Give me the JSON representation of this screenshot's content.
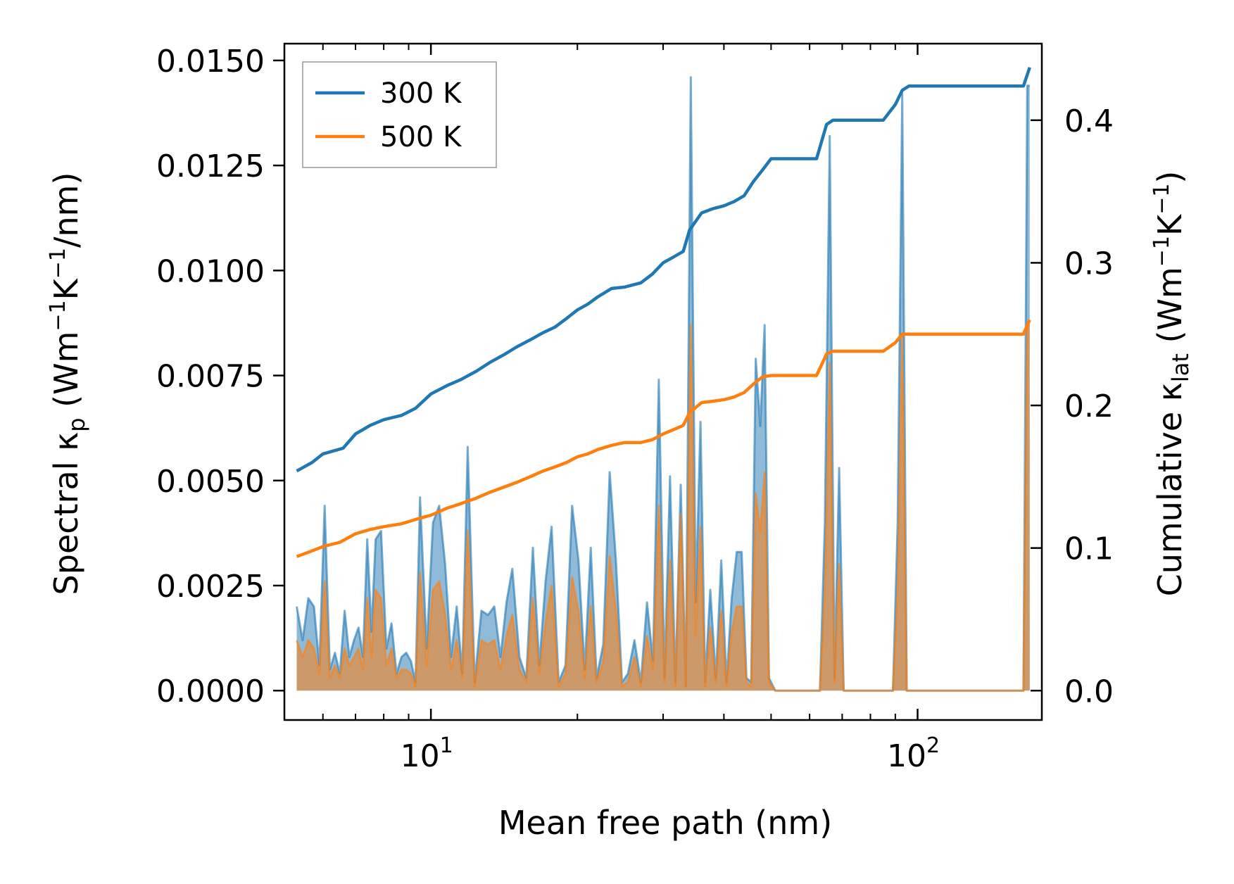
{
  "chart_data": {
    "type": "line",
    "title": "",
    "xlabel": "Mean free path (nm)",
    "ylabel_left": {
      "main": "Spectral κ",
      "sub": "p",
      "unit_open": " (Wm",
      "sup1": "−1",
      "mid": "K",
      "sup2": "−1",
      "unit_close": "/nm)"
    },
    "ylabel_right": {
      "main": "Cumulative κ",
      "sub": "lat",
      "unit_open": " (Wm",
      "sup1": "−1",
      "mid": "K",
      "sup2": "−1",
      "unit_close": ")"
    },
    "xscale": "log",
    "xlim": [
      5.0,
      180
    ],
    "ylim_left": [
      -0.0007,
      0.0154
    ],
    "ylim_right": [
      -0.0206,
      0.4537
    ],
    "x_major_ticks": [
      {
        "value": 10,
        "base": "10",
        "exp": "1"
      },
      {
        "value": 100,
        "base": "10",
        "exp": "2"
      }
    ],
    "left_ticks": [
      {
        "value": 0.0,
        "label": "0.0000"
      },
      {
        "value": 0.0025,
        "label": "0.0025"
      },
      {
        "value": 0.005,
        "label": "0.0050"
      },
      {
        "value": 0.0075,
        "label": "0.0075"
      },
      {
        "value": 0.01,
        "label": "0.0100"
      },
      {
        "value": 0.0125,
        "label": "0.0125"
      },
      {
        "value": 0.015,
        "label": "0.0150"
      }
    ],
    "right_ticks": [
      {
        "value": 0.0,
        "label": "0.0"
      },
      {
        "value": 0.1,
        "label": "0.1"
      },
      {
        "value": 0.2,
        "label": "0.2"
      },
      {
        "value": 0.3,
        "label": "0.3"
      },
      {
        "value": 0.4,
        "label": "0.4"
      }
    ],
    "legend": {
      "position": "upper-left"
    },
    "series": [
      {
        "name": "300 K",
        "color": "#1f77b4",
        "cumulative": {
          "x": [
            5.3,
            5.7,
            6.0,
            6.6,
            7.0,
            7.5,
            8.0,
            8.7,
            9.3,
            10.0,
            10.8,
            11.5,
            12.4,
            13.2,
            14.2,
            15.0,
            16.0,
            17.0,
            18.0,
            19.0,
            20.0,
            21.0,
            22.0,
            23.5,
            25.0,
            27.0,
            28.5,
            30.0,
            31.5,
            33.0,
            34.0,
            36.0,
            38.0,
            40.0,
            42.0,
            44.0,
            46.0,
            48.0,
            50.0,
            55.0,
            62.0,
            65.0,
            67.0,
            70.0,
            75.0,
            85.0,
            90.0,
            93.0,
            96.0,
            110.0,
            130.0,
            150.0,
            165.0,
            170.0
          ],
          "y": [
            0.154,
            0.16,
            0.166,
            0.17,
            0.18,
            0.186,
            0.19,
            0.193,
            0.198,
            0.208,
            0.214,
            0.218,
            0.224,
            0.23,
            0.236,
            0.241,
            0.246,
            0.251,
            0.255,
            0.261,
            0.267,
            0.271,
            0.276,
            0.282,
            0.283,
            0.286,
            0.292,
            0.3,
            0.304,
            0.308,
            0.323,
            0.335,
            0.338,
            0.34,
            0.343,
            0.347,
            0.357,
            0.365,
            0.373,
            0.373,
            0.373,
            0.397,
            0.4,
            0.4,
            0.4,
            0.4,
            0.411,
            0.421,
            0.424,
            0.424,
            0.424,
            0.424,
            0.424,
            0.437
          ]
        },
        "spectral": {
          "x": [
            5.3,
            5.45,
            5.6,
            5.75,
            5.9,
            6.05,
            6.2,
            6.35,
            6.5,
            6.65,
            6.8,
            6.95,
            7.1,
            7.25,
            7.4,
            7.55,
            7.7,
            7.9,
            8.1,
            8.3,
            8.5,
            8.7,
            8.9,
            9.1,
            9.3,
            9.5,
            9.8,
            10.1,
            10.4,
            10.7,
            11.0,
            11.3,
            11.6,
            11.9,
            12.3,
            12.7,
            13.1,
            13.5,
            13.9,
            14.3,
            14.7,
            15.2,
            15.7,
            16.2,
            16.7,
            17.2,
            17.7,
            18.3,
            18.9,
            19.5,
            20.1,
            20.7,
            21.3,
            21.9,
            22.6,
            23.3,
            24.0,
            24.7,
            25.4,
            26.2,
            27.0,
            27.8,
            28.6,
            29.4,
            30.2,
            31.0,
            31.8,
            32.6,
            33.4,
            34.2,
            35.0,
            35.8,
            36.6,
            37.5,
            38.5,
            39.5,
            40.5,
            41.5,
            42.5,
            43.5,
            44.5,
            45.5,
            46.5,
            47.5,
            48.5,
            49.5,
            51.0,
            53.0,
            56.0,
            60.0,
            63.0,
            64.5,
            66.0,
            67.5,
            69.0,
            70.5,
            72.0,
            75.0,
            80.0,
            86.0,
            89.0,
            91.0,
            93.0,
            95.0,
            97.0,
            100.0,
            120.0,
            140.0,
            160.0,
            165.0,
            168.0,
            170.0
          ],
          "y": [
            0.002,
            0.0012,
            0.0022,
            0.002,
            0.0006,
            0.0044,
            0.0005,
            0.0009,
            0.0004,
            0.0019,
            0.0008,
            0.0012,
            0.0015,
            0.0008,
            0.0036,
            0.0014,
            0.0036,
            0.0038,
            0.001,
            0.0016,
            0.0004,
            0.0008,
            0.0009,
            0.0007,
            0.0002,
            0.0046,
            0.001,
            0.004,
            0.0044,
            0.003,
            0.0008,
            0.002,
            0.0004,
            0.0058,
            0.0002,
            0.0019,
            0.0018,
            0.002,
            0.0008,
            0.0021,
            0.0029,
            0.0008,
            0.0003,
            0.0034,
            0.0006,
            0.0026,
            0.0039,
            0.0002,
            0.0006,
            0.0044,
            0.0031,
            0.0005,
            0.0034,
            0.0003,
            0.0011,
            0.0052,
            0.0031,
            0.0002,
            0.0004,
            0.0012,
            0.0002,
            0.0021,
            0.0007,
            0.0074,
            0.0003,
            0.0051,
            0.0002,
            0.0049,
            0.0001,
            0.0146,
            0.0021,
            0.0064,
            0.0002,
            0.0024,
            0.0003,
            0.0031,
            0.0002,
            0.0022,
            0.0033,
            0.0033,
            0.0003,
            0.0002,
            0.0079,
            0.0063,
            0.0087,
            0.0003,
            0.0,
            0.0,
            0.0,
            0.0,
            0.0,
            0.004,
            0.0132,
            0.0003,
            0.0053,
            0.0,
            0.0,
            0.0,
            0.0,
            0.0,
            0.0,
            0.004,
            0.0142,
            0.0,
            0.0,
            0.0,
            0.0,
            0.0,
            0.0,
            0.0,
            0.0144,
            0.0144
          ]
        }
      },
      {
        "name": "500 K",
        "color": "#ff7f0e",
        "cumulative": {
          "x": [
            5.3,
            5.6,
            6.0,
            6.5,
            7.0,
            7.5,
            8.0,
            8.7,
            9.3,
            10.0,
            10.8,
            11.5,
            12.4,
            13.2,
            14.2,
            15.0,
            16.0,
            17.0,
            18.0,
            19.0,
            20.0,
            21.0,
            22.0,
            23.5,
            25.0,
            27.0,
            28.5,
            30.0,
            31.5,
            33.0,
            34.0,
            36.0,
            38.0,
            40.0,
            42.0,
            44.0,
            46.0,
            48.0,
            50.0,
            55.0,
            62.0,
            65.0,
            67.0,
            70.0,
            75.0,
            85.0,
            90.0,
            93.0,
            96.0,
            110.0,
            130.0,
            150.0,
            165.0,
            170.0
          ],
          "y": [
            0.094,
            0.097,
            0.101,
            0.104,
            0.11,
            0.113,
            0.115,
            0.117,
            0.12,
            0.123,
            0.128,
            0.131,
            0.135,
            0.139,
            0.143,
            0.146,
            0.15,
            0.154,
            0.157,
            0.16,
            0.164,
            0.166,
            0.169,
            0.172,
            0.174,
            0.174,
            0.176,
            0.18,
            0.183,
            0.186,
            0.195,
            0.202,
            0.203,
            0.204,
            0.206,
            0.209,
            0.215,
            0.22,
            0.221,
            0.221,
            0.221,
            0.236,
            0.238,
            0.238,
            0.238,
            0.238,
            0.244,
            0.25,
            0.25,
            0.25,
            0.25,
            0.25,
            0.25,
            0.26
          ]
        },
        "spectral": {
          "x": [
            5.3,
            5.45,
            5.6,
            5.75,
            5.9,
            6.05,
            6.2,
            6.35,
            6.5,
            6.65,
            6.8,
            6.95,
            7.1,
            7.25,
            7.4,
            7.55,
            7.7,
            7.9,
            8.1,
            8.3,
            8.5,
            8.7,
            8.9,
            9.1,
            9.3,
            9.5,
            9.8,
            10.1,
            10.4,
            10.7,
            11.0,
            11.3,
            11.6,
            11.9,
            12.3,
            12.7,
            13.1,
            13.5,
            13.9,
            14.3,
            14.7,
            15.2,
            15.7,
            16.2,
            16.7,
            17.2,
            17.7,
            18.3,
            18.9,
            19.5,
            20.1,
            20.7,
            21.3,
            21.9,
            22.6,
            23.3,
            24.0,
            24.7,
            25.4,
            26.2,
            27.0,
            27.8,
            28.6,
            29.4,
            30.2,
            31.0,
            31.8,
            32.6,
            33.4,
            34.2,
            35.0,
            35.8,
            36.6,
            37.5,
            38.5,
            39.5,
            40.5,
            41.5,
            42.5,
            43.5,
            44.5,
            45.5,
            46.5,
            47.5,
            48.5,
            49.5,
            51.0,
            53.0,
            56.0,
            60.0,
            63.0,
            64.5,
            66.0,
            67.5,
            69.0,
            70.5,
            72.0,
            75.0,
            80.0,
            86.0,
            89.0,
            91.0,
            93.0,
            95.0,
            97.0,
            100.0,
            120.0,
            140.0,
            160.0,
            165.0,
            168.0,
            170.0
          ],
          "y": [
            0.0012,
            0.0008,
            0.0012,
            0.001,
            0.0004,
            0.0026,
            0.0003,
            0.0006,
            0.0003,
            0.001,
            0.0006,
            0.0008,
            0.001,
            0.0005,
            0.0022,
            0.0008,
            0.0024,
            0.0022,
            0.0006,
            0.001,
            0.0003,
            0.0005,
            0.0005,
            0.0004,
            0.0001,
            0.0028,
            0.0006,
            0.0024,
            0.0026,
            0.0018,
            0.0005,
            0.0012,
            0.0003,
            0.0038,
            0.0001,
            0.0012,
            0.0011,
            0.0012,
            0.0005,
            0.0013,
            0.0018,
            0.0005,
            0.0002,
            0.0022,
            0.0004,
            0.0016,
            0.0025,
            0.0001,
            0.0004,
            0.0027,
            0.0019,
            0.0003,
            0.002,
            0.0002,
            0.0007,
            0.0032,
            0.0019,
            0.0001,
            0.0002,
            0.0008,
            0.0001,
            0.0013,
            0.0005,
            0.0044,
            0.0002,
            0.0031,
            0.0001,
            0.0042,
            0.0001,
            0.0087,
            0.0013,
            0.0039,
            0.0001,
            0.0015,
            0.0002,
            0.0019,
            0.0001,
            0.0014,
            0.002,
            0.002,
            0.0002,
            0.0001,
            0.0047,
            0.0038,
            0.0052,
            0.0002,
            0.0,
            0.0,
            0.0,
            0.0,
            0.0,
            0.0024,
            0.0078,
            0.0002,
            0.003,
            0.0,
            0.0,
            0.0,
            0.0,
            0.0,
            0.0,
            0.0024,
            0.0085,
            0.0,
            0.0,
            0.0,
            0.0,
            0.0,
            0.0,
            0.0,
            0.0087,
            0.0087
          ]
        }
      }
    ]
  }
}
